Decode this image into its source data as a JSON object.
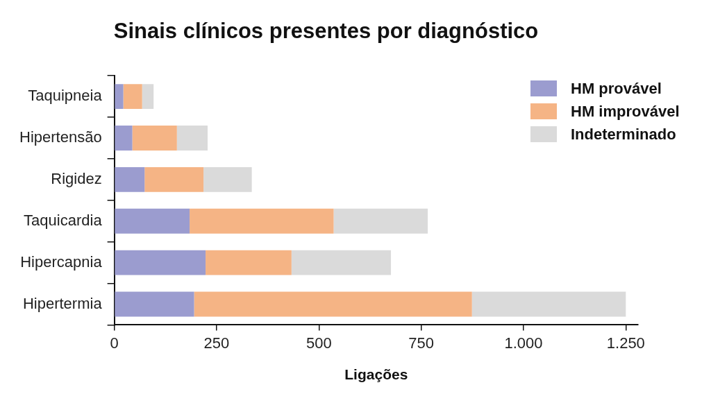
{
  "chart_data": {
    "type": "bar",
    "title": "Sinais clínicos presentes por diagnóstico",
    "x_label": "Ligações",
    "orientation": "horizontal",
    "stacked": true,
    "grid": false,
    "legend": "top-right",
    "categories": [
      "Taquipneia",
      "Hipertensão",
      "Rigidez",
      "Taquicardia",
      "Hipercapnia",
      "Hipertermia"
    ],
    "series": [
      {
        "name": "HM provável",
        "color": "#9b9ccf",
        "values": [
          22,
          44,
          74,
          184,
          223,
          195
        ]
      },
      {
        "name": "HM improvável",
        "color": "#f5b485",
        "values": [
          46,
          109,
          144,
          352,
          210,
          679
        ]
      },
      {
        "name": "Indeterminado",
        "color": "#dadada",
        "values": [
          28,
          75,
          118,
          230,
          243,
          376
        ]
      }
    ],
    "xlim": [
      0,
      1280
    ],
    "xticks": [
      0,
      250,
      500,
      750,
      {
        "value": 1000,
        "label": "1.000"
      },
      {
        "value": 1250,
        "label": "1.250"
      }
    ]
  }
}
